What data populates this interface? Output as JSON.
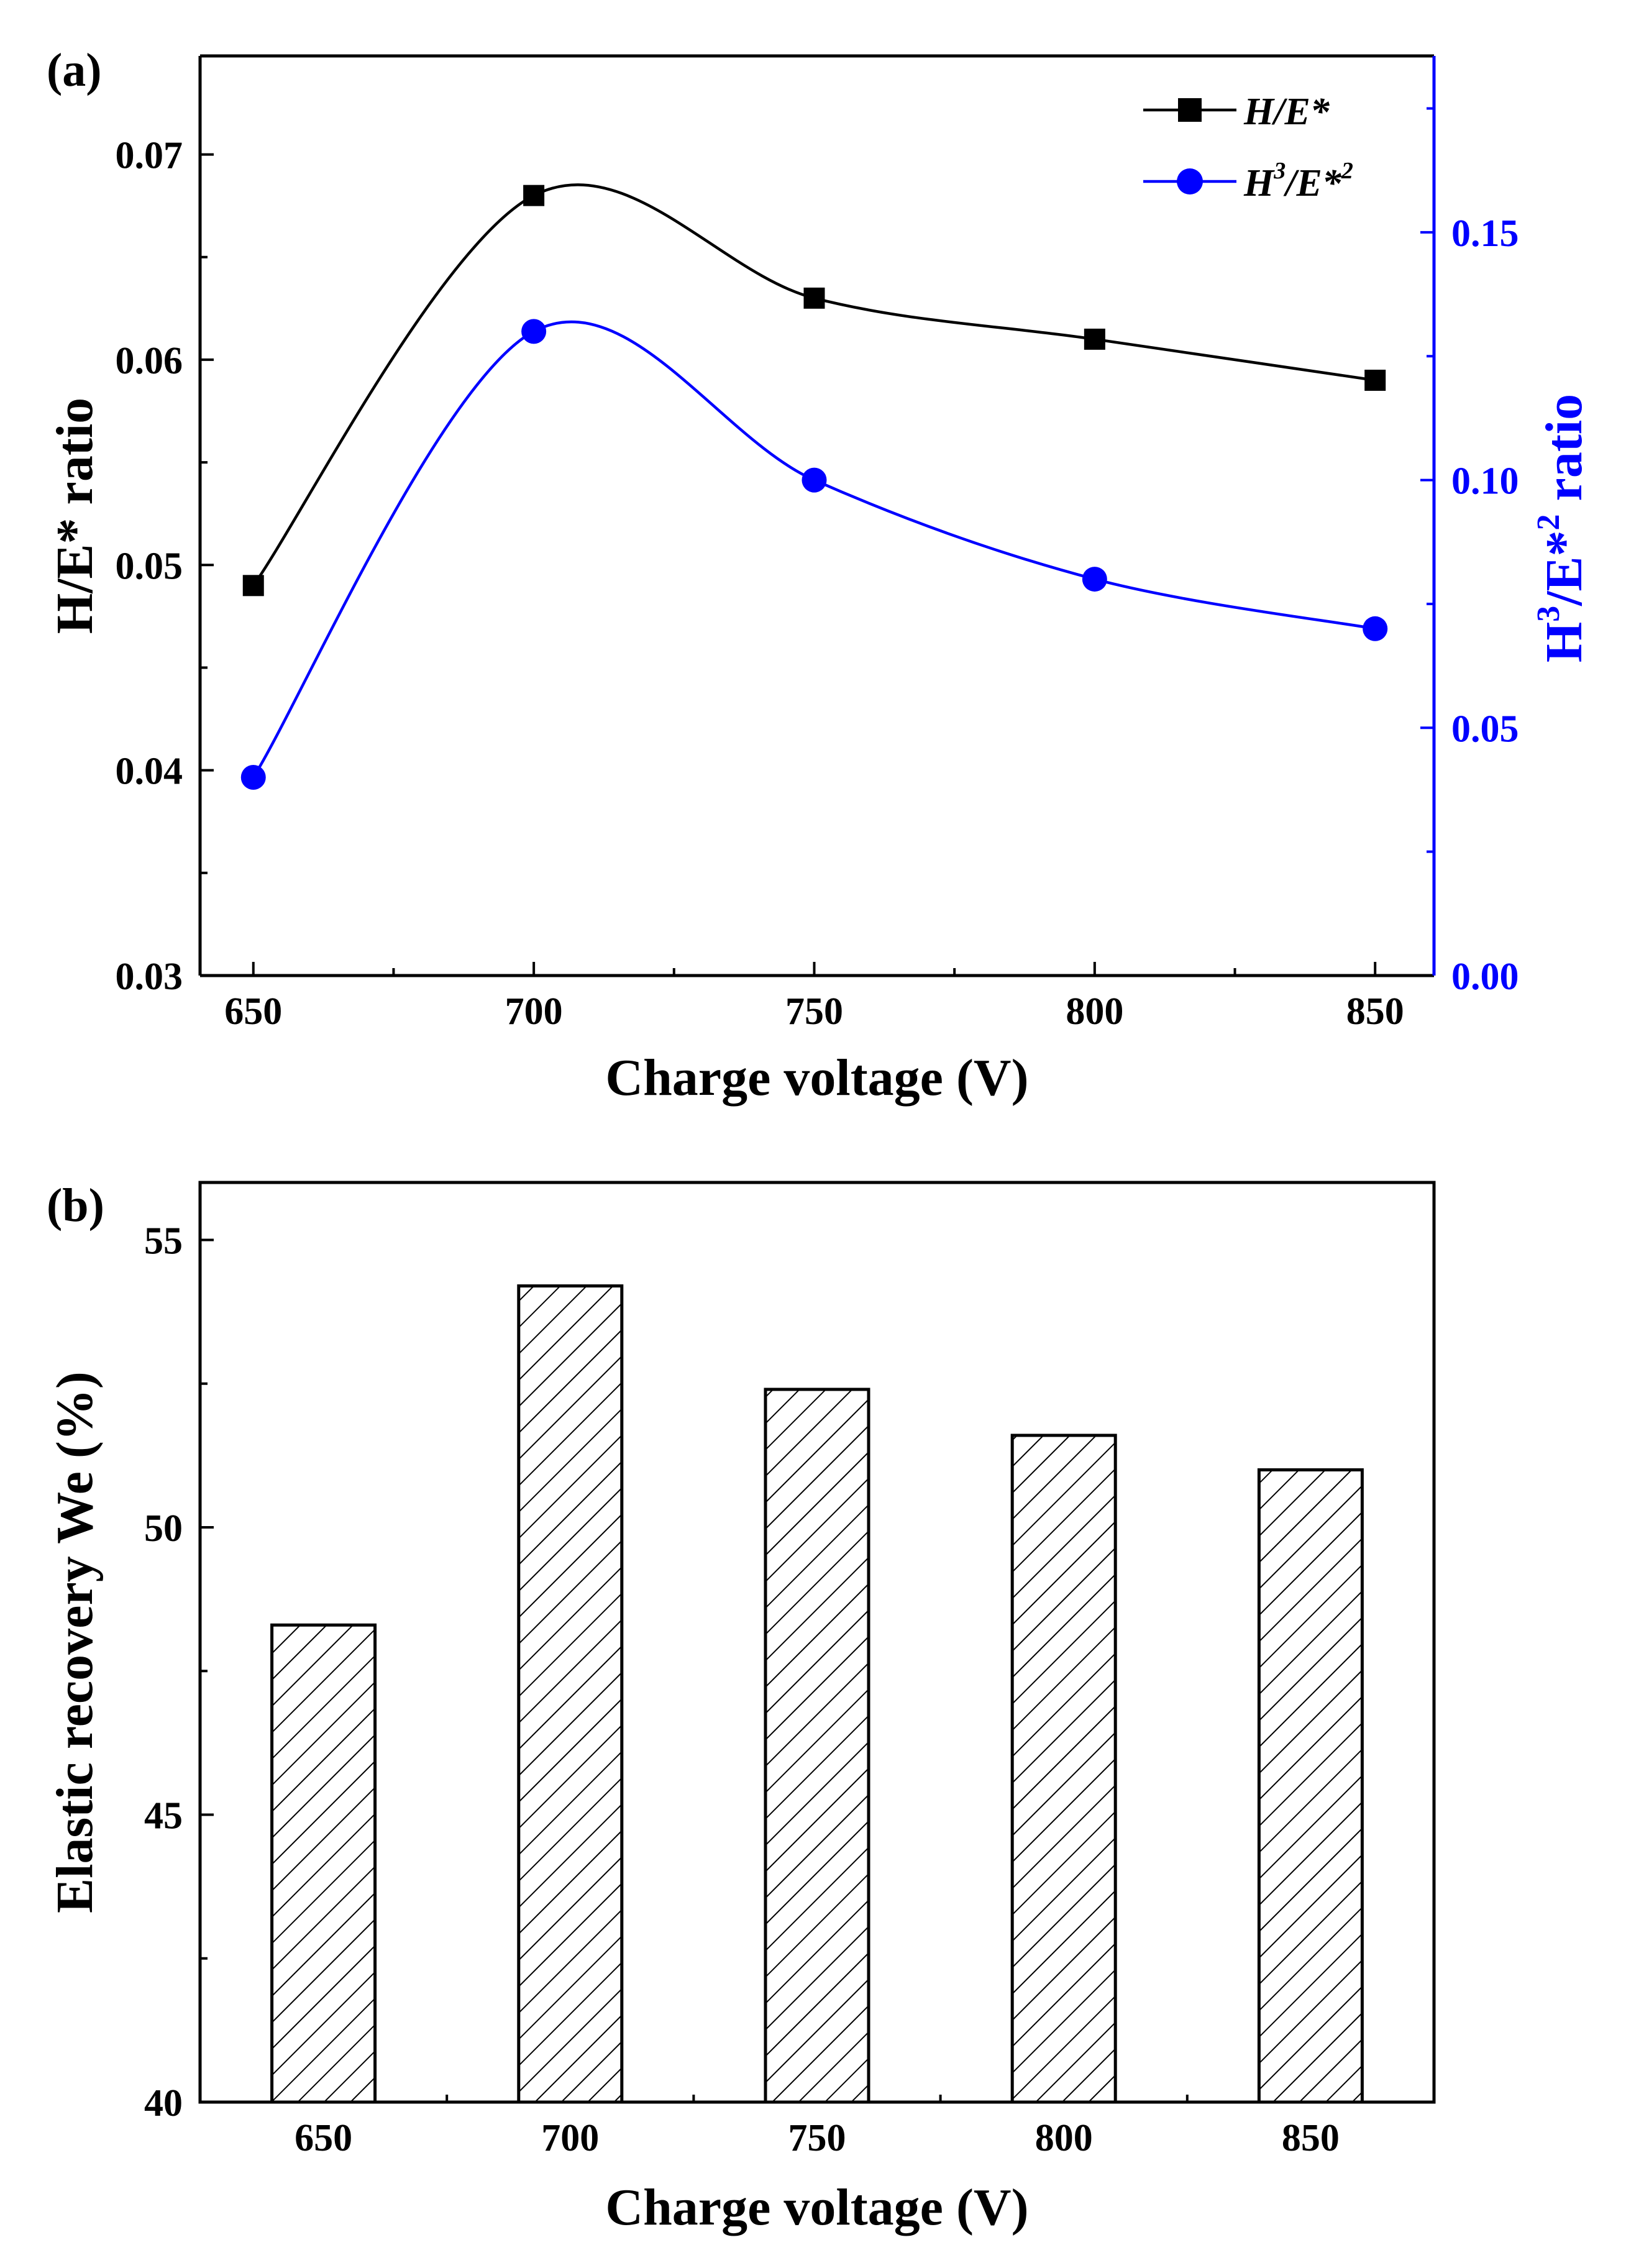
{
  "chart_data": [
    {
      "panel_label": "(a)",
      "type": "line",
      "xlabel": "Charge voltage (V)",
      "ylabel": "H/E* ratio",
      "y2label": {
        "base": "H",
        "sup1": "3",
        "mid": "/E*",
        "sup2": "2",
        "tail": " ratio"
      },
      "x": [
        650,
        700,
        750,
        800,
        850
      ],
      "x_ticks": [
        "650",
        "700",
        "750",
        "800",
        "850"
      ],
      "xlim": [
        640.5,
        860.5
      ],
      "ylim": [
        0.03,
        0.0748
      ],
      "y_ticks": [
        "0.03",
        "0.04",
        "0.05",
        "0.06",
        "0.07"
      ],
      "y2lim": [
        0.0,
        0.1856
      ],
      "y2_ticks": [
        "0.00",
        "0.05",
        "0.10",
        "0.15"
      ],
      "y2_color": "#0000FF",
      "legend_position": "top-right",
      "series": [
        {
          "name": "H/E*",
          "axis": "left",
          "marker": "square",
          "color": "#000000",
          "values": [
            0.049,
            0.068,
            0.063,
            0.061,
            0.059
          ],
          "legend": {
            "base": "H/E*",
            "sup1": "",
            "mid": "",
            "sup2": ""
          }
        },
        {
          "name": "H3/E*2",
          "axis": "right",
          "marker": "circle",
          "color": "#0000FF",
          "values": [
            0.04,
            0.13,
            0.1,
            0.08,
            0.07
          ],
          "legend": {
            "base": "H",
            "sup1": "3",
            "mid": "/E*",
            "sup2": "2"
          }
        }
      ]
    },
    {
      "panel_label": "(b)",
      "type": "bar",
      "xlabel": "Charge voltage (V)",
      "ylabel": "Elastic recovery We (%)",
      "categories": [
        "650",
        "700",
        "750",
        "800",
        "850"
      ],
      "values": [
        48.3,
        54.2,
        52.4,
        51.6,
        51.0
      ],
      "ylim": [
        40,
        56
      ],
      "y_ticks": [
        "40",
        "45",
        "50",
        "55"
      ],
      "bar_fill": "diagonal-hatch"
    }
  ]
}
